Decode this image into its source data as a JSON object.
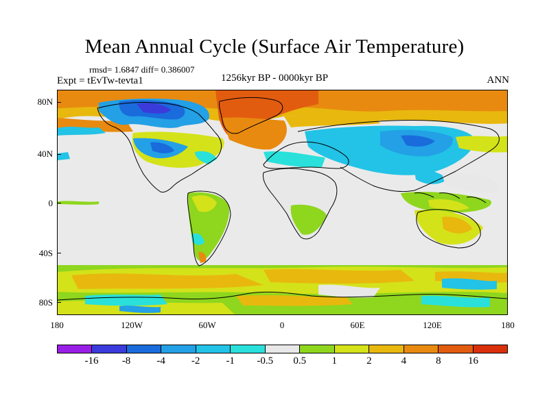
{
  "title": "Mean Annual Cycle (Surface Air Temperature)",
  "stats": "rmsd= 1.6847 diff= 0.386007",
  "experiment": "Expt = tEvTw-tevta1",
  "period": "1256kyr BP - 0000kyr BP",
  "season": "ANN",
  "lat_labels": [
    "80N",
    "40N",
    "0",
    "40S",
    "80S"
  ],
  "lon_labels": [
    "180",
    "120W",
    "60W",
    "0",
    "60E",
    "120E",
    "180"
  ],
  "colorbar": {
    "labels": [
      "-16",
      "-8",
      "-4",
      "-2",
      "-1",
      "-0.5",
      "0.5",
      "1",
      "2",
      "4",
      "8",
      "16"
    ],
    "colors": [
      "#9a1fe6",
      "#3b3bdc",
      "#1a6bdc",
      "#23a0e6",
      "#22c3e6",
      "#2ae0da",
      "#e8e8e8",
      "#8fd61e",
      "#d4e21a",
      "#e8b80e",
      "#e88a10",
      "#e25c10",
      "#d9300c"
    ]
  },
  "map_colors": {
    "background": "#eaeaea",
    "warm_light": "#8fd61e",
    "warm_yellow": "#d4e21a",
    "warm_gold": "#e8b80e",
    "warm_orange": "#e88a10",
    "warm_deep": "#e25c10",
    "cool_cyan": "#2ae0da",
    "cool_sky": "#22c3e6",
    "cool_blue": "#23a0e6",
    "cool_deep": "#1a6bdc",
    "cool_darkest": "#3b3bdc",
    "coastline": "#000000"
  }
}
